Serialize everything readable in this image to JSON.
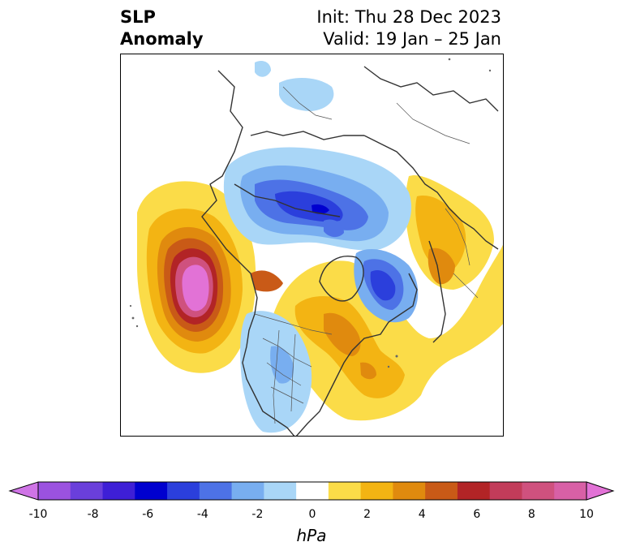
{
  "header": {
    "var_line1": "SLP",
    "var_line2": "Anomaly",
    "init_text": "Init: Thu 28 Dec 2023",
    "valid_text": "Valid: 19 Jan – 25 Jan"
  },
  "colorbar": {
    "unit": "hPa",
    "ticks": [
      "-10",
      "-8",
      "-6",
      "-4",
      "-2",
      "0",
      "2",
      "4",
      "6",
      "8",
      "10"
    ],
    "colors": [
      "#cf74e6",
      "#9b52e0",
      "#6a3fdb",
      "#3e1fd6",
      "#0000cf",
      "#2b3fdc",
      "#4d72e6",
      "#78aef0",
      "#a9d6f7",
      "#ffffff",
      "#fbdc48",
      "#f3b413",
      "#e08a0e",
      "#c95a17",
      "#b22426",
      "#c23c5a",
      "#cf517e",
      "#d860a6",
      "#e272d6"
    ]
  }
}
